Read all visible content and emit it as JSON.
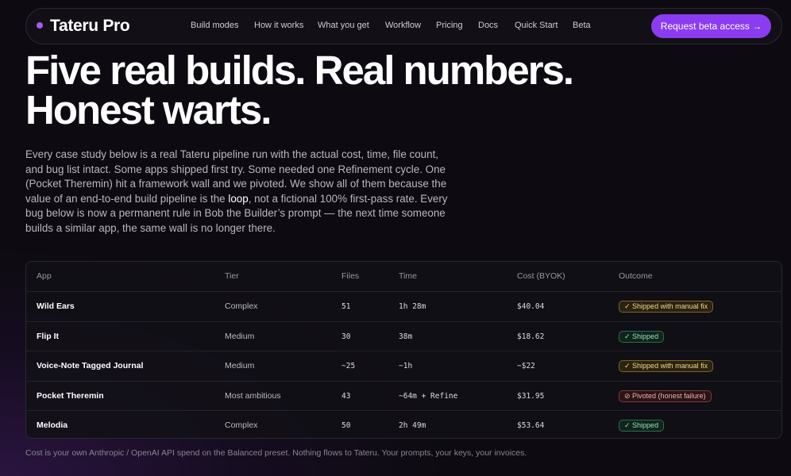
{
  "nav": {
    "brand": "Tateru Pro",
    "links": [
      "Build modes",
      "How it works",
      "What you get",
      "Workflow",
      "Pricing",
      "Docs",
      "Quick Start",
      "Beta"
    ],
    "cta": "Request beta access →"
  },
  "hero": {
    "title_line1": "Five real builds. Real numbers.",
    "title_line2": "Honest warts.",
    "intro_before": "Every case study below is a real Tateru pipeline run with the actual cost, time, file count, and bug list intact. Some apps shipped first try. Some needed one Refinement cycle. One (Pocket Theremin) hit a framework wall and we pivoted. We show all of them because the value of an end-to-end build pipeline is the ",
    "intro_emphasis": "loop",
    "intro_after": ", not a fictional 100% first-pass rate. Every bug below is now a permanent rule in Bob the Builder’s prompt — the next time someone builds a similar app, the same wall is no longer there."
  },
  "table": {
    "headers": [
      "App",
      "Tier",
      "Files",
      "Time",
      "Cost (BYOK)",
      "Outcome"
    ],
    "rows": [
      [
        "Wild Ears",
        "Complex",
        51,
        "1h 28m",
        "$40.04",
        "✓ Shipped with manual fix"
      ],
      [
        "Flip It",
        "Medium",
        30,
        "38m",
        "$18.62",
        "✓ Shipped"
      ],
      [
        "Voice-Note Tagged Journal",
        "Medium",
        "~25",
        "~1h",
        "~$22",
        "✓ Shipped with manual fix"
      ],
      [
        "Pocket Theremin",
        "Most ambitious",
        43,
        "~64m + Refine",
        "$31.95",
        "⊘ Pivoted (honest failure)"
      ],
      [
        "Melodia",
        "Complex",
        50,
        "2h 49m",
        "$53.64",
        "✓ Shipped"
      ]
    ]
  },
  "footnote": "Cost is your own Anthropic / OpenAI API spend on the Balanced preset. Nothing flows to Tateru. Your prompts, your keys, your invoices."
}
